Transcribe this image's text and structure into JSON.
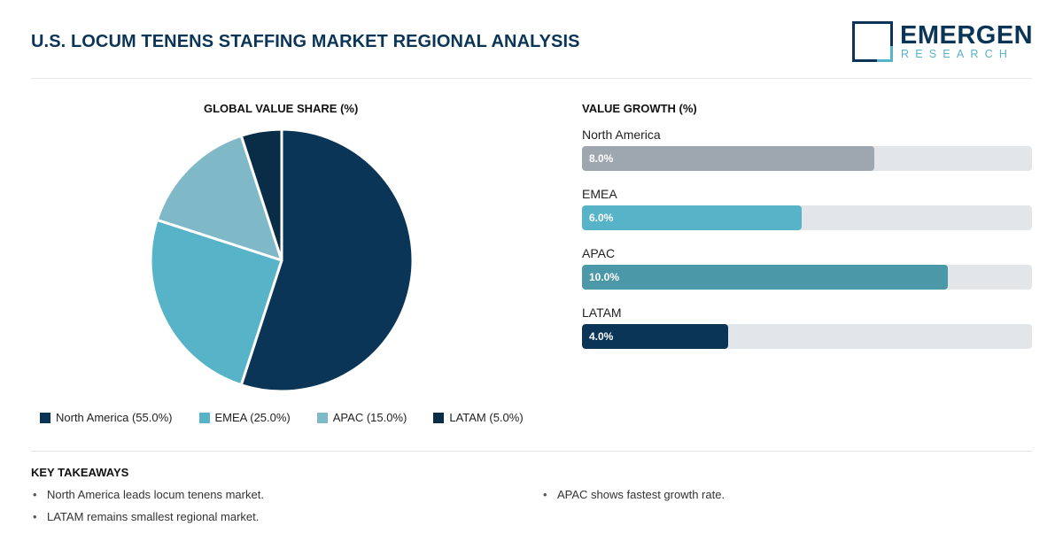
{
  "header": {
    "title": "U.S. LOCUM TENENS STAFFING MARKET REGIONAL ANALYSIS",
    "logo_word": "EMERGEN",
    "logo_sub": "RESEARCH"
  },
  "colors": {
    "navy": "#0b3556",
    "teal": "#57b3c8",
    "light_teal": "#7fb9c8",
    "dark_navy": "#0a2d47",
    "gray": "#9ea6b0",
    "mid_teal": "#4b98a8",
    "track": "#e3e6e9"
  },
  "chart_data": [
    {
      "type": "pie",
      "title": "GLOBAL VALUE SHARE (%)",
      "unit": "%",
      "slices": [
        {
          "label": "North America",
          "value": 55.0,
          "color": "#0b3556"
        },
        {
          "label": "EMEA",
          "value": 25.0,
          "color": "#57b3c8"
        },
        {
          "label": "APAC",
          "value": 15.0,
          "color": "#7fb9c8"
        },
        {
          "label": "LATAM",
          "value": 5.0,
          "color": "#0a2d47"
        }
      ],
      "legend": [
        "North America (55.0%)",
        "EMEA (25.0%)",
        "APAC (15.0%)",
        "LATAM (5.0%)"
      ],
      "legend_position": "bottom"
    },
    {
      "type": "bar",
      "orientation": "horizontal",
      "title": "VALUE GROWTH (%)",
      "unit": "%",
      "xlim": [
        0,
        12.3
      ],
      "categories": [
        "North America",
        "EMEA",
        "APAC",
        "LATAM"
      ],
      "values": [
        8.0,
        6.0,
        10.0,
        4.0
      ],
      "value_labels": [
        "8.0%",
        "6.0%",
        "10.0%",
        "4.0%"
      ],
      "colors": [
        "#9ea6b0",
        "#57b3c8",
        "#4b98a8",
        "#0b3556"
      ]
    }
  ],
  "takeaways": {
    "title": "KEY TAKEAWAYS",
    "items": [
      "North America leads locum tenens market.",
      "APAC shows fastest growth rate.",
      "LATAM remains smallest regional market."
    ]
  }
}
